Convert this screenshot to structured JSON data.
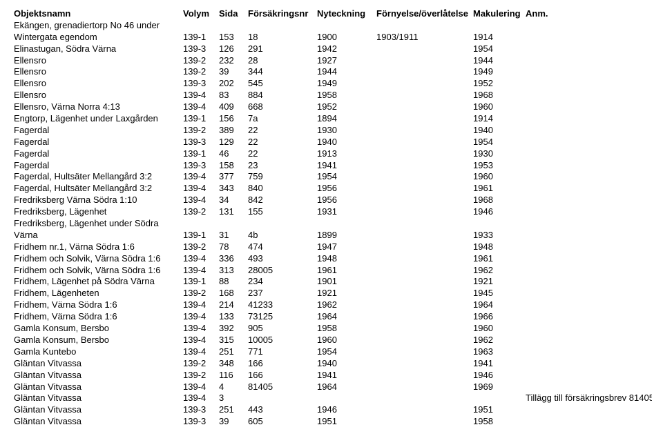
{
  "headers": {
    "name": "Objektsnamn",
    "volym": "Volym",
    "sida": "Sida",
    "fors": "Försäkringsnr",
    "nyt": "Nyteckning",
    "forn": "Förnyelse/överlåtelse",
    "mak": "Makulering",
    "anm": "Anm."
  },
  "rows": [
    {
      "name": "Ekängen, grenadiertorp No 46 under",
      "volym": "",
      "sida": "",
      "fors": "",
      "nyt": "",
      "forn": "",
      "mak": "",
      "anm": ""
    },
    {
      "name": "Wintergata egendom",
      "volym": "139-1",
      "sida": "153",
      "fors": "18",
      "nyt": "1900",
      "forn": "1903/1911",
      "mak": "1914",
      "anm": ""
    },
    {
      "name": "Elinastugan, Södra Värna",
      "volym": "139-3",
      "sida": "126",
      "fors": "291",
      "nyt": "1942",
      "forn": "",
      "mak": "1954",
      "anm": ""
    },
    {
      "name": "Ellensro",
      "volym": "139-2",
      "sida": "232",
      "fors": "28",
      "nyt": "1927",
      "forn": "",
      "mak": "1944",
      "anm": ""
    },
    {
      "name": "Ellensro",
      "volym": "139-2",
      "sida": "39",
      "fors": "344",
      "nyt": "1944",
      "forn": "",
      "mak": "1949",
      "anm": ""
    },
    {
      "name": "Ellensro",
      "volym": "139-3",
      "sida": "202",
      "fors": "545",
      "nyt": "1949",
      "forn": "",
      "mak": "1952",
      "anm": ""
    },
    {
      "name": "Ellensro",
      "volym": "139-4",
      "sida": "83",
      "fors": "884",
      "nyt": "1958",
      "forn": "",
      "mak": "1968",
      "anm": ""
    },
    {
      "name": "Ellensro, Värna Norra 4:13",
      "volym": "139-4",
      "sida": "409",
      "fors": "668",
      "nyt": "1952",
      "forn": "",
      "mak": "1960",
      "anm": ""
    },
    {
      "name": "Engtorp, Lägenhet under Laxgården",
      "volym": "139-1",
      "sida": "156",
      "fors": "7a",
      "nyt": "1894",
      "forn": "",
      "mak": "1914",
      "anm": ""
    },
    {
      "name": "Fagerdal",
      "volym": "139-2",
      "sida": "389",
      "fors": "22",
      "nyt": "1930",
      "forn": "",
      "mak": "1940",
      "anm": ""
    },
    {
      "name": "Fagerdal",
      "volym": "139-3",
      "sida": "129",
      "fors": "22",
      "nyt": "1940",
      "forn": "",
      "mak": "1954",
      "anm": ""
    },
    {
      "name": "Fagerdal",
      "volym": "139-1",
      "sida": "46",
      "fors": "22",
      "nyt": "1913",
      "forn": "",
      "mak": "1930",
      "anm": ""
    },
    {
      "name": "Fagerdal",
      "volym": "139-3",
      "sida": "158",
      "fors": "23",
      "nyt": "1941",
      "forn": "",
      "mak": "1953",
      "anm": ""
    },
    {
      "name": "Fagerdal, Hultsäter Mellangård 3:2",
      "volym": "139-4",
      "sida": "377",
      "fors": "759",
      "nyt": "1954",
      "forn": "",
      "mak": "1960",
      "anm": ""
    },
    {
      "name": "Fagerdal, Hultsäter Mellangård 3:2",
      "volym": "139-4",
      "sida": "343",
      "fors": "840",
      "nyt": "1956",
      "forn": "",
      "mak": "1961",
      "anm": ""
    },
    {
      "name": "Fredriksberg Värna Södra 1:10",
      "volym": "139-4",
      "sida": "34",
      "fors": "842",
      "nyt": "1956",
      "forn": "",
      "mak": "1968",
      "anm": ""
    },
    {
      "name": "Fredriksberg, Lägenhet",
      "volym": "139-2",
      "sida": "131",
      "fors": "155",
      "nyt": "1931",
      "forn": "",
      "mak": "1946",
      "anm": ""
    },
    {
      "name": "Fredriksberg, Lägenhet under Södra",
      "volym": "",
      "sida": "",
      "fors": "",
      "nyt": "",
      "forn": "",
      "mak": "",
      "anm": ""
    },
    {
      "name": "Värna",
      "volym": "139-1",
      "sida": "31",
      "fors": "4b",
      "nyt": "1899",
      "forn": "",
      "mak": "1933",
      "anm": ""
    },
    {
      "name": "Fridhem nr.1, Värna Södra 1:6",
      "volym": "139-2",
      "sida": "78",
      "fors": "474",
      "nyt": "1947",
      "forn": "",
      "mak": "1948",
      "anm": ""
    },
    {
      "name": "Fridhem och Solvik, Värna Södra 1:6",
      "volym": "139-4",
      "sida": "336",
      "fors": "493",
      "nyt": "1948",
      "forn": "",
      "mak": "1961",
      "anm": ""
    },
    {
      "name": "Fridhem och Solvik, Värna Södra 1:6",
      "volym": "139-4",
      "sida": "313",
      "fors": "28005",
      "nyt": "1961",
      "forn": "",
      "mak": "1962",
      "anm": ""
    },
    {
      "name": "Fridhem, Lägenhet på Södra Värna",
      "volym": "139-1",
      "sida": "88",
      "fors": "234",
      "nyt": "1901",
      "forn": "",
      "mak": "1921",
      "anm": ""
    },
    {
      "name": "Fridhem, Lägenheten",
      "volym": "139-2",
      "sida": "168",
      "fors": "237",
      "nyt": "1921",
      "forn": "",
      "mak": "1945",
      "anm": ""
    },
    {
      "name": "Fridhem, Värna Södra 1:6",
      "volym": "139-4",
      "sida": "214",
      "fors": "41233",
      "nyt": "1962",
      "forn": "",
      "mak": "1964",
      "anm": ""
    },
    {
      "name": "Fridhem, Värna Södra 1:6",
      "volym": "139-4",
      "sida": "133",
      "fors": "73125",
      "nyt": "1964",
      "forn": "",
      "mak": "1966",
      "anm": ""
    },
    {
      "name": "Gamla Konsum, Bersbo",
      "volym": "139-4",
      "sida": "392",
      "fors": "905",
      "nyt": "1958",
      "forn": "",
      "mak": "1960",
      "anm": ""
    },
    {
      "name": "Gamla Konsum, Bersbo",
      "volym": "139-4",
      "sida": "315",
      "fors": "10005",
      "nyt": "1960",
      "forn": "",
      "mak": "1962",
      "anm": ""
    },
    {
      "name": "Gamla Kuntebo",
      "volym": "139-4",
      "sida": "251",
      "fors": "771",
      "nyt": "1954",
      "forn": "",
      "mak": "1963",
      "anm": ""
    },
    {
      "name": "Gläntan Vitvassa",
      "volym": "139-2",
      "sida": "348",
      "fors": "166",
      "nyt": "1940",
      "forn": "",
      "mak": "1941",
      "anm": ""
    },
    {
      "name": "Gläntan Vitvassa",
      "volym": "139-2",
      "sida": "116",
      "fors": "166",
      "nyt": "1941",
      "forn": "",
      "mak": "1946",
      "anm": ""
    },
    {
      "name": "Gläntan Vitvassa",
      "volym": "139-4",
      "sida": "4",
      "fors": "81405",
      "nyt": "1964",
      "forn": "",
      "mak": "1969",
      "anm": ""
    },
    {
      "name": "Gläntan Vitvassa",
      "volym": "139-4",
      "sida": "3",
      "fors": "",
      "nyt": "",
      "forn": "",
      "mak": "",
      "anm": "Tillägg till försäkringsbrev 81405"
    },
    {
      "name": "Gläntan Vitvassa",
      "volym": "139-3",
      "sida": "251",
      "fors": "443",
      "nyt": "1946",
      "forn": "",
      "mak": "1951",
      "anm": ""
    },
    {
      "name": "Gläntan Vitvassa",
      "volym": "139-3",
      "sida": "39",
      "fors": "605",
      "nyt": "1951",
      "forn": "",
      "mak": "1958",
      "anm": ""
    }
  ]
}
